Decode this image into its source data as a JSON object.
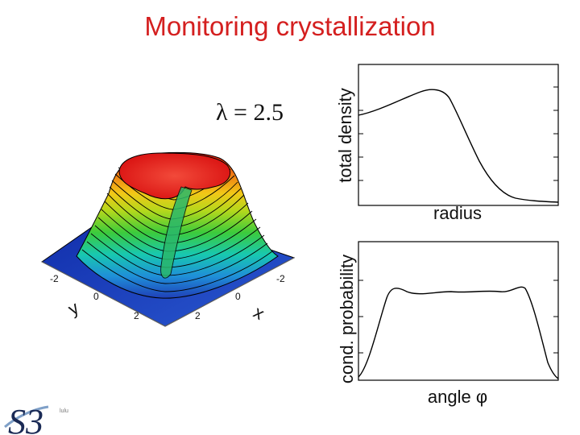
{
  "slide": {
    "title": "Monitoring crystallization",
    "lambda_label": "λ = 2.5"
  },
  "surface_plot": {
    "tick_labels": [
      "-2",
      "0",
      "2",
      "2",
      "0",
      "-2"
    ],
    "y_axis": "y",
    "x_axis": "x"
  },
  "top_plot": {
    "ylabel": "total density",
    "xlabel": "radius"
  },
  "bottom_plot": {
    "ylabel": "cond. probability",
    "xlabel": "angle φ"
  },
  "logo": {
    "text": "S3",
    "small_text": "lulu"
  },
  "colors": {
    "title": "#d41f1f",
    "surface_top": "#e01010",
    "surface_bottom": "#1f3fb8"
  }
}
